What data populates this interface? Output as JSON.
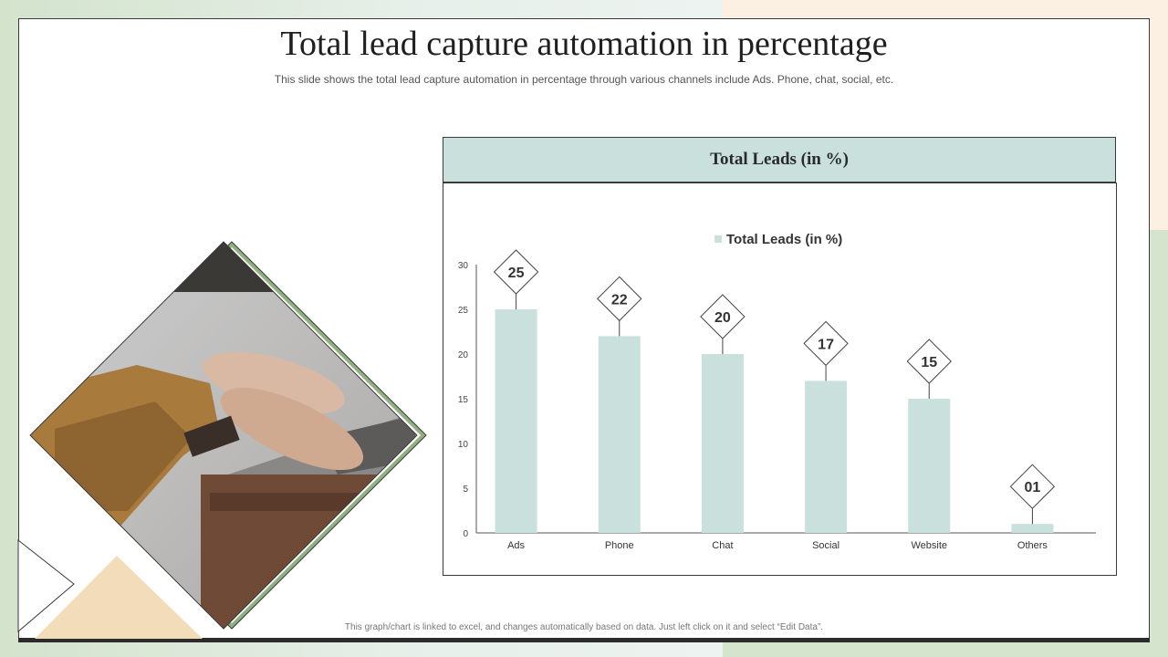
{
  "slide": {
    "title": "Total lead capture automation in percentage",
    "subtitle": "This slide shows the total lead capture automation in percentage through various channels include Ads. Phone, chat, social, etc.",
    "footnote": "This graph/chart is linked to excel, and changes automatically based on data.  Just left click on it and select “Edit Data”."
  },
  "chart_header": "Total Leads (in %)",
  "image": {
    "description": "hands-typing-on-laptop-photo"
  },
  "colors": {
    "bar": "#c9e0dc",
    "accent_green": "#8fb07f",
    "accent_peach": "#f3dcba",
    "header_fill": "#c9e0dc"
  },
  "chart_data": {
    "type": "bar",
    "title": "",
    "legend": [
      "Total Leads (in %)"
    ],
    "legend_position": "top",
    "categories": [
      "Ads",
      "Phone",
      "Chat",
      "Social",
      "Website",
      "Others"
    ],
    "series": [
      {
        "name": "Total Leads (in %)",
        "values": [
          25,
          22,
          20,
          17,
          15,
          1
        ]
      }
    ],
    "data_labels": [
      "25",
      "22",
      "20",
      "17",
      "15",
      "01"
    ],
    "ylim": [
      0,
      30
    ],
    "yticks": [
      0,
      5,
      10,
      15,
      20,
      25,
      30
    ],
    "grid": false
  }
}
